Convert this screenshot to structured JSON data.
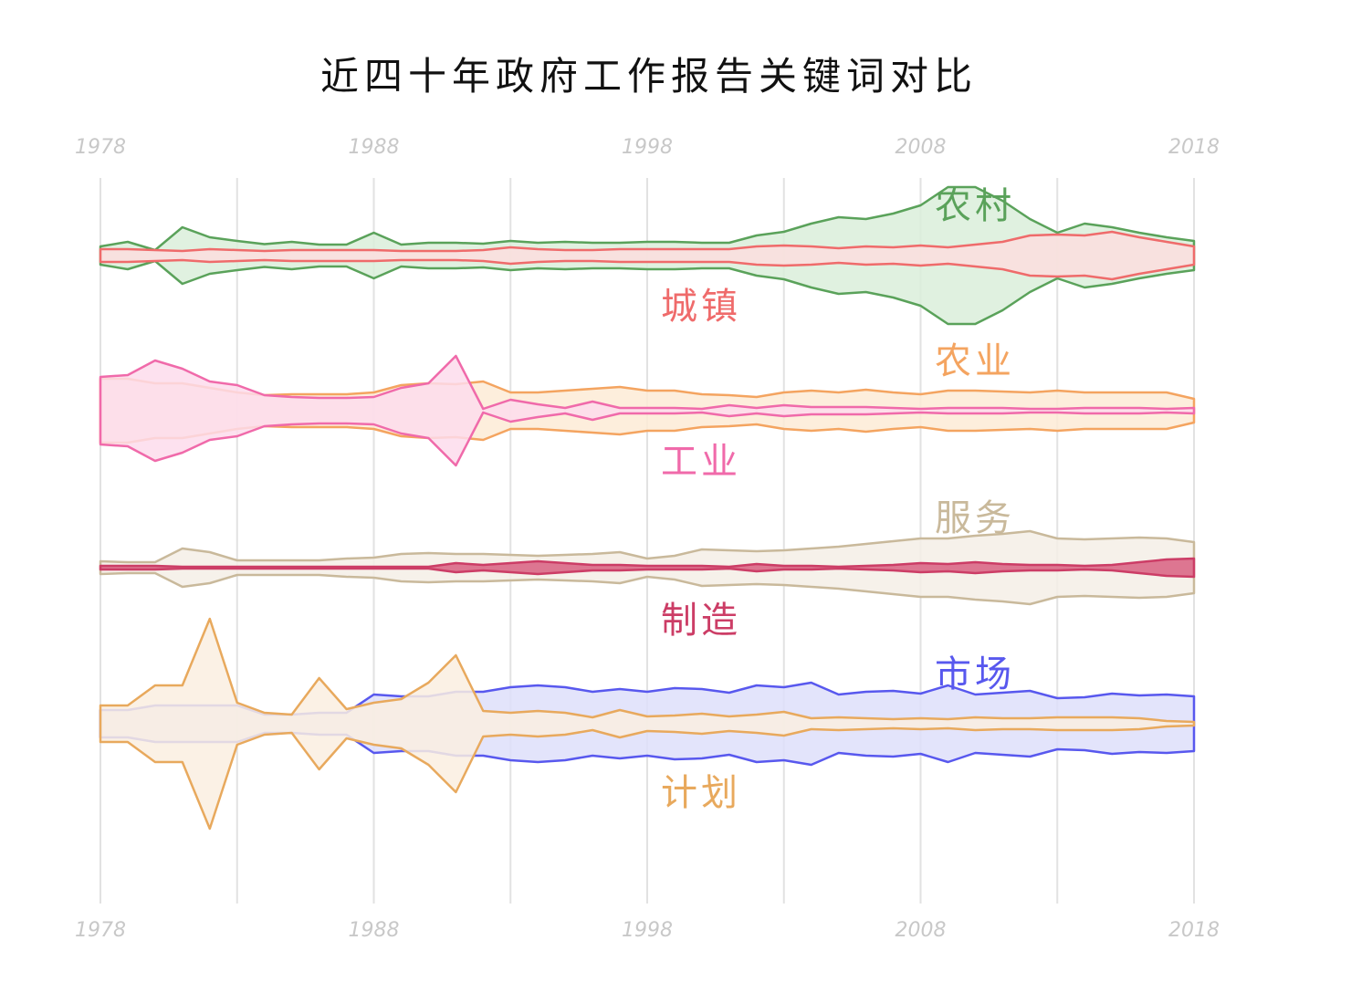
{
  "title": "近四十年政府工作报告关键词对比",
  "chart_data": {
    "type": "area",
    "title": "近四十年政府工作报告关键词对比",
    "x_ticks": [
      "1978",
      "1988",
      "1998",
      "2008",
      "2018"
    ],
    "xlim": [
      1978,
      2018
    ],
    "grid": true,
    "x": [
      1978,
      1979,
      1980,
      1981,
      1982,
      1983,
      1984,
      1985,
      1986,
      1987,
      1988,
      1989,
      1990,
      1991,
      1992,
      1993,
      1994,
      1995,
      1996,
      1997,
      1998,
      1999,
      2000,
      2001,
      2002,
      2003,
      2004,
      2005,
      2006,
      2007,
      2008,
      2009,
      2010,
      2011,
      2012,
      2013,
      2014,
      2015,
      2016,
      2017,
      2018
    ],
    "groups": [
      {
        "series": [
          {
            "name": "农村",
            "color": "#5aa25a",
            "fill": "#dbeedb",
            "values": [
              20,
              30,
              12,
              62,
              40,
              32,
              25,
              30,
              24,
              24,
              50,
              24,
              28,
              28,
              26,
              32,
              28,
              30,
              28,
              28,
              30,
              30,
              28,
              28,
              44,
              52,
              70,
              84,
              80,
              92,
              110,
              150,
              150,
              120,
              80,
              50,
              70,
              62,
              50,
              40,
              32
            ]
          },
          {
            "name": "城镇",
            "color": "#ef6b6b",
            "fill": "#fcdede",
            "values": [
              14,
              14,
              12,
              10,
              14,
              12,
              10,
              12,
              12,
              12,
              12,
              10,
              10,
              10,
              12,
              18,
              14,
              12,
              12,
              14,
              14,
              14,
              14,
              14,
              20,
              22,
              20,
              16,
              20,
              18,
              22,
              18,
              24,
              30,
              44,
              46,
              44,
              52,
              40,
              30,
              20
            ]
          }
        ]
      },
      {
        "series": [
          {
            "name": "农业",
            "color": "#f4a460",
            "fill": "#fdebd6",
            "values": [
              70,
              70,
              60,
              60,
              50,
              40,
              34,
              36,
              36,
              36,
              40,
              56,
              60,
              58,
              64,
              40,
              40,
              44,
              48,
              52,
              44,
              44,
              36,
              34,
              30,
              40,
              44,
              40,
              46,
              40,
              36,
              44,
              44,
              42,
              40,
              44,
              40,
              40,
              40,
              40,
              26
            ]
          },
          {
            "name": "工业",
            "color": "#f06aaa",
            "fill": "#fddcec",
            "values": [
              74,
              78,
              110,
              92,
              64,
              56,
              34,
              30,
              28,
              28,
              30,
              50,
              60,
              120,
              4,
              24,
              14,
              6,
              20,
              6,
              6,
              6,
              4,
              12,
              6,
              12,
              8,
              8,
              8,
              6,
              4,
              6,
              6,
              6,
              4,
              4,
              6,
              6,
              6,
              4,
              6
            ]
          }
        ]
      },
      {
        "series": [
          {
            "name": "服务",
            "color": "#c9b99b",
            "fill": "#f4efe6",
            "values": [
              14,
              12,
              12,
              42,
              34,
              16,
              16,
              16,
              16,
              20,
              22,
              30,
              32,
              30,
              30,
              28,
              26,
              28,
              30,
              34,
              20,
              26,
              40,
              38,
              36,
              38,
              42,
              46,
              52,
              58,
              64,
              64,
              70,
              74,
              80,
              64,
              62,
              64,
              66,
              64,
              56
            ]
          },
          {
            "name": "制造",
            "color": "#cc3d66",
            "fill": "#d86081",
            "values": [
              4,
              4,
              4,
              2,
              2,
              2,
              2,
              2,
              2,
              2,
              2,
              2,
              2,
              10,
              6,
              10,
              14,
              10,
              6,
              6,
              4,
              4,
              4,
              2,
              8,
              4,
              4,
              2,
              4,
              6,
              10,
              8,
              12,
              8,
              6,
              6,
              4,
              6,
              12,
              18,
              20
            ]
          }
        ]
      },
      {
        "series": [
          {
            "name": "市场",
            "color": "#5858ee",
            "fill": "#dedffa",
            "values": [
              30,
              30,
              40,
              40,
              40,
              40,
              20,
              20,
              24,
              24,
              64,
              60,
              60,
              70,
              70,
              80,
              84,
              80,
              70,
              76,
              70,
              78,
              76,
              68,
              84,
              80,
              90,
              64,
              70,
              72,
              66,
              84,
              64,
              68,
              72,
              56,
              58,
              66,
              62,
              64,
              60
            ]
          },
          {
            "name": "计划",
            "color": "#e8a95d",
            "fill": "#faefe1",
            "values": [
              40,
              40,
              84,
              84,
              230,
              46,
              24,
              20,
              100,
              32,
              46,
              54,
              90,
              150,
              28,
              24,
              28,
              24,
              14,
              30,
              16,
              18,
              22,
              16,
              20,
              26,
              12,
              14,
              12,
              10,
              12,
              10,
              14,
              12,
              12,
              14,
              14,
              14,
              12,
              6,
              4
            ]
          }
        ]
      }
    ]
  }
}
